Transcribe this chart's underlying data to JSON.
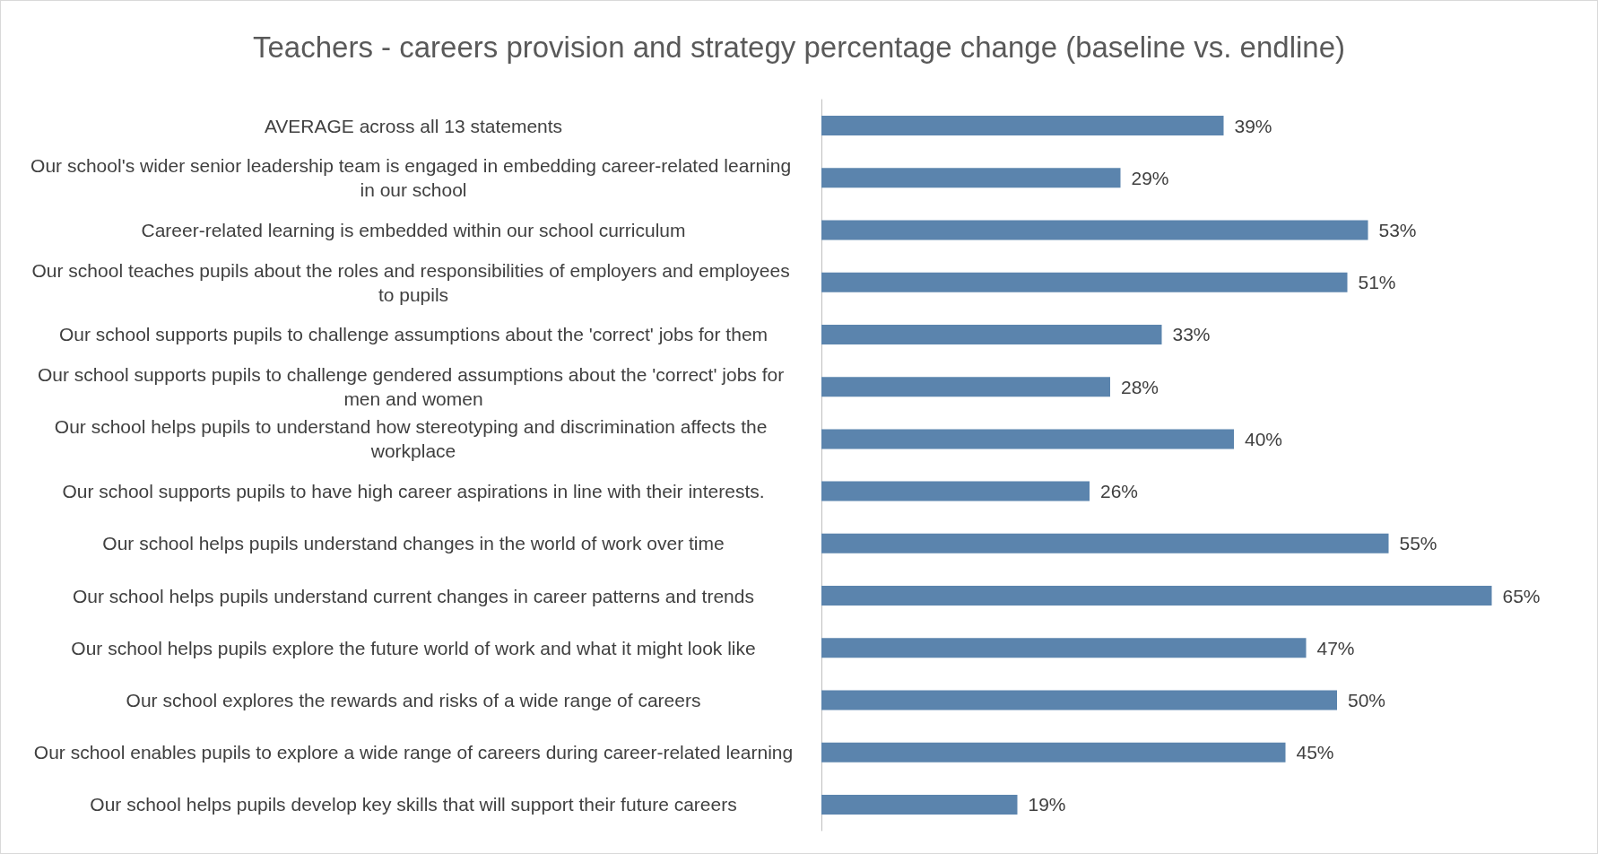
{
  "chart_data": {
    "type": "bar",
    "orientation": "horizontal",
    "title": "Teachers - careers provision and strategy percentage change (baseline vs. endline)",
    "categories": [
      "AVERAGE across all 13 statements",
      "Our school's wider senior leadership team is engaged in embedding career-related learning in our school",
      "Career-related learning is embedded within our school curriculum",
      "Our school teaches pupils about the roles and responsibilities of employers and employees to pupils",
      "Our school supports pupils to challenge assumptions about the 'correct' jobs for them",
      "Our school supports pupils to challenge gendered assumptions about the 'correct' jobs for men and women",
      "Our school helps pupils to understand how stereotyping and discrimination affects the workplace",
      "Our school supports pupils to have high career aspirations in line with their interests.",
      "Our school helps pupils understand changes in the world of work over time",
      "Our school helps pupils understand current changes in career patterns and trends",
      "Our school helps pupils explore the future world of work and what it might look like",
      "Our school explores the rewards and risks of a wide range of careers",
      "Our school enables pupils to explore a wide range of careers during career-related learning",
      "Our school helps pupils develop key skills that will support their future careers"
    ],
    "values": [
      39,
      29,
      53,
      51,
      33,
      28,
      40,
      26,
      55,
      65,
      47,
      50,
      45,
      19
    ],
    "value_labels": [
      "39%",
      "29%",
      "53%",
      "51%",
      "33%",
      "28%",
      "40%",
      "26%",
      "55%",
      "65%",
      "47%",
      "50%",
      "45%",
      "19%"
    ],
    "color": "#5b84ad"
  }
}
